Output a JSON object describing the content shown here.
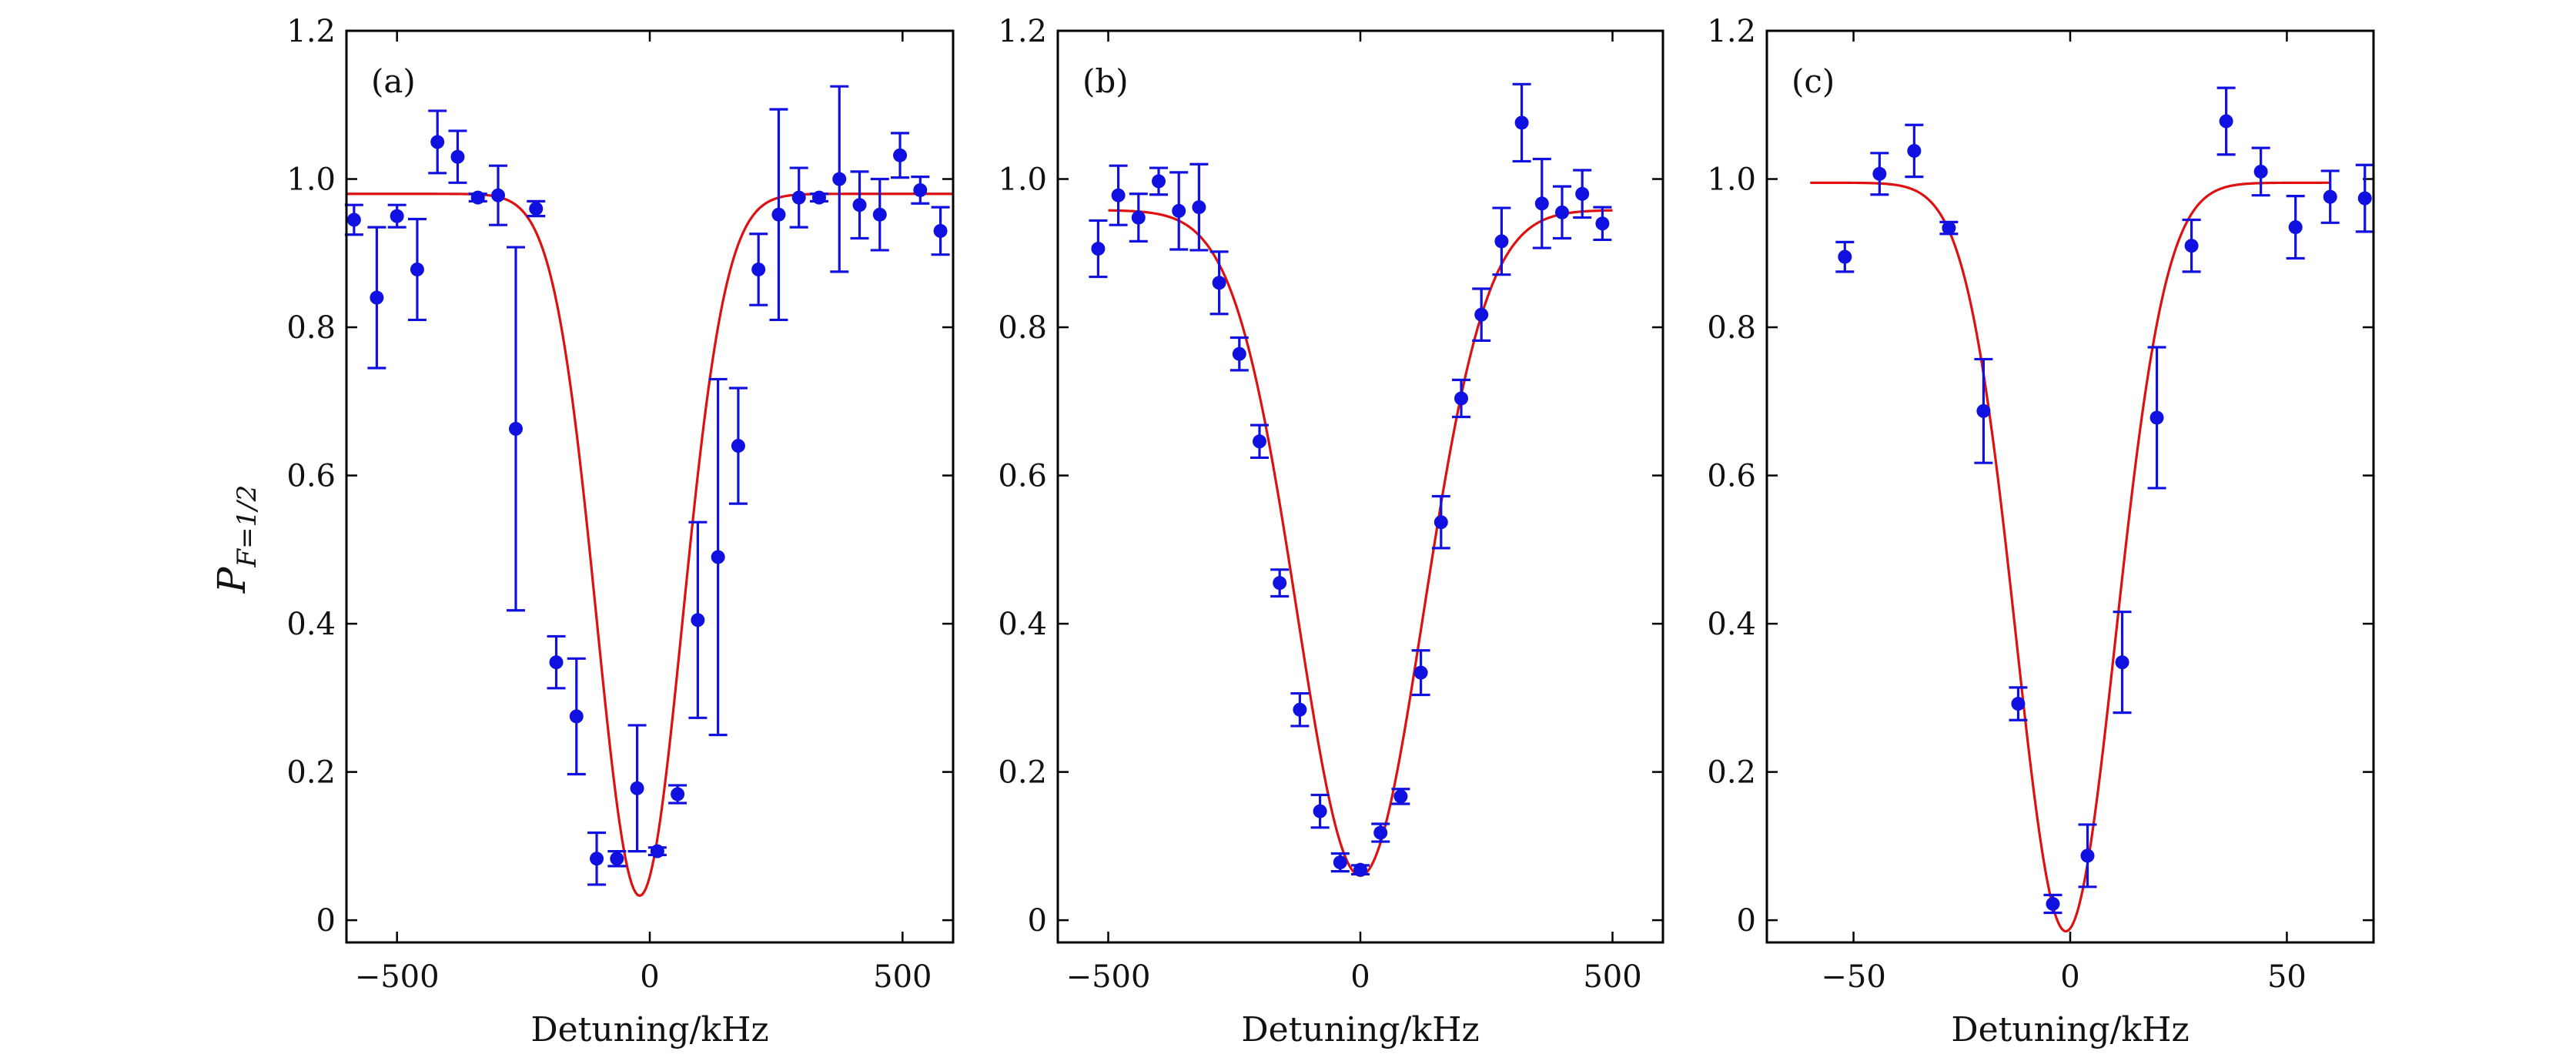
{
  "colors": {
    "data": "#1010e0",
    "fit": "#dd1111"
  },
  "figure": {
    "ylabel_main": "P",
    "ylabel_sub": "F=1/2"
  },
  "chart_data": [
    {
      "type": "scatter",
      "panel_label": "(a)",
      "xlabel": "Detuning/kHz",
      "xlim": [
        -600,
        600
      ],
      "ylim": [
        -0.03,
        1.2
      ],
      "xticks": [
        -500,
        0,
        500
      ],
      "xtick_labels": [
        "−500",
        "0",
        "500"
      ],
      "yticks": [
        0,
        0.2,
        0.4,
        0.6,
        0.8,
        1.0,
        1.2
      ],
      "ytick_labels": [
        "0",
        "0.2",
        "0.4",
        "0.6",
        "0.8",
        "1.0",
        "1.2"
      ],
      "series": [
        {
          "name": "data",
          "x": [
            -585,
            -540,
            -500,
            -460,
            -420,
            -380,
            -340,
            -300,
            -265,
            -225,
            -185,
            -145,
            -105,
            -65,
            -25,
            15,
            55,
            95,
            135,
            175,
            215,
            255,
            295,
            335,
            375,
            415,
            455,
            495,
            535,
            575
          ],
          "y": [
            0.945,
            0.84,
            0.95,
            0.878,
            1.05,
            1.03,
            0.975,
            0.978,
            0.663,
            0.96,
            0.348,
            0.275,
            0.083,
            0.083,
            0.178,
            0.093,
            0.17,
            0.405,
            0.49,
            0.64,
            0.878,
            0.952,
            0.975,
            0.975,
            1.0,
            0.965,
            0.952,
            1.032,
            0.985,
            0.93
          ],
          "err": [
            0.02,
            0.095,
            0.015,
            0.068,
            0.042,
            0.035,
            0.005,
            0.04,
            0.245,
            0.01,
            0.035,
            0.078,
            0.035,
            0.01,
            0.085,
            0.005,
            0.012,
            0.132,
            0.24,
            0.078,
            0.048,
            0.142,
            0.04,
            0.005,
            0.125,
            0.045,
            0.048,
            0.03,
            0.018,
            0.032
          ]
        },
        {
          "name": "fit",
          "model": "gaussian_dip",
          "baseline": 0.98,
          "depth": 0.947,
          "center": -20,
          "sigma": 85,
          "x_range": [
            -600,
            600
          ]
        }
      ]
    },
    {
      "type": "scatter",
      "panel_label": "(b)",
      "xlabel": "Detuning/kHz",
      "xlim": [
        -600,
        600
      ],
      "ylim": [
        -0.03,
        1.2
      ],
      "xticks": [
        -500,
        0,
        500
      ],
      "xtick_labels": [
        "−500",
        "0",
        "500"
      ],
      "yticks": [
        0,
        0.2,
        0.4,
        0.6,
        0.8,
        1.0,
        1.2
      ],
      "ytick_labels": [
        "0",
        "0.2",
        "0.4",
        "0.6",
        "0.8",
        "1.0",
        "1.2"
      ],
      "series": [
        {
          "name": "data",
          "x": [
            -520,
            -480,
            -440,
            -400,
            -360,
            -320,
            -280,
            -240,
            -200,
            -160,
            -120,
            -80,
            -40,
            0,
            40,
            80,
            120,
            160,
            200,
            240,
            280,
            320,
            360,
            400,
            440,
            480
          ],
          "y": [
            0.906,
            0.978,
            0.948,
            0.997,
            0.957,
            0.962,
            0.86,
            0.764,
            0.646,
            0.455,
            0.284,
            0.147,
            0.078,
            0.068,
            0.118,
            0.167,
            0.334,
            0.537,
            0.704,
            0.817,
            0.916,
            1.076,
            0.967,
            0.955,
            0.98,
            0.94
          ],
          "err": [
            0.038,
            0.04,
            0.032,
            0.018,
            0.052,
            0.058,
            0.042,
            0.022,
            0.022,
            0.018,
            0.022,
            0.022,
            0.012,
            0.006,
            0.012,
            0.01,
            0.03,
            0.035,
            0.025,
            0.035,
            0.045,
            0.052,
            0.06,
            0.035,
            0.032,
            0.022
          ]
        },
        {
          "name": "fit",
          "model": "gaussian_dip",
          "baseline": 0.958,
          "depth": 0.898,
          "center": 0,
          "sigma": 125,
          "x_range": [
            -500,
            500
          ]
        }
      ]
    },
    {
      "type": "scatter",
      "panel_label": "(c)",
      "xlabel": "Detuning/kHz",
      "xlim": [
        -70,
        70
      ],
      "ylim": [
        -0.03,
        1.2
      ],
      "xticks": [
        -50,
        0,
        50
      ],
      "xtick_labels": [
        "−50",
        "0",
        "50"
      ],
      "yticks": [
        0,
        0.2,
        0.4,
        0.6,
        0.8,
        1.0,
        1.2
      ],
      "ytick_labels": [
        "0",
        "0.2",
        "0.4",
        "0.6",
        "0.8",
        "1.0",
        "1.2"
      ],
      "series": [
        {
          "name": "data",
          "x": [
            -52,
            -44,
            -36,
            -28,
            -20,
            -12,
            -4,
            4,
            12,
            20,
            28,
            36,
            44,
            52,
            60,
            68
          ],
          "y": [
            0.895,
            1.007,
            1.038,
            0.934,
            0.687,
            0.292,
            0.022,
            0.087,
            0.348,
            0.678,
            0.91,
            1.078,
            1.01,
            0.935,
            0.976,
            0.974
          ],
          "err": [
            0.02,
            0.028,
            0.035,
            0.008,
            0.07,
            0.022,
            0.012,
            0.042,
            0.068,
            0.095,
            0.035,
            0.045,
            0.032,
            0.042,
            0.035,
            0.045
          ]
        },
        {
          "name": "fit",
          "model": "gaussian_dip",
          "baseline": 0.995,
          "depth": 1.01,
          "center": -1,
          "sigma": 11.5,
          "x_range": [
            -60,
            60
          ]
        }
      ]
    }
  ]
}
